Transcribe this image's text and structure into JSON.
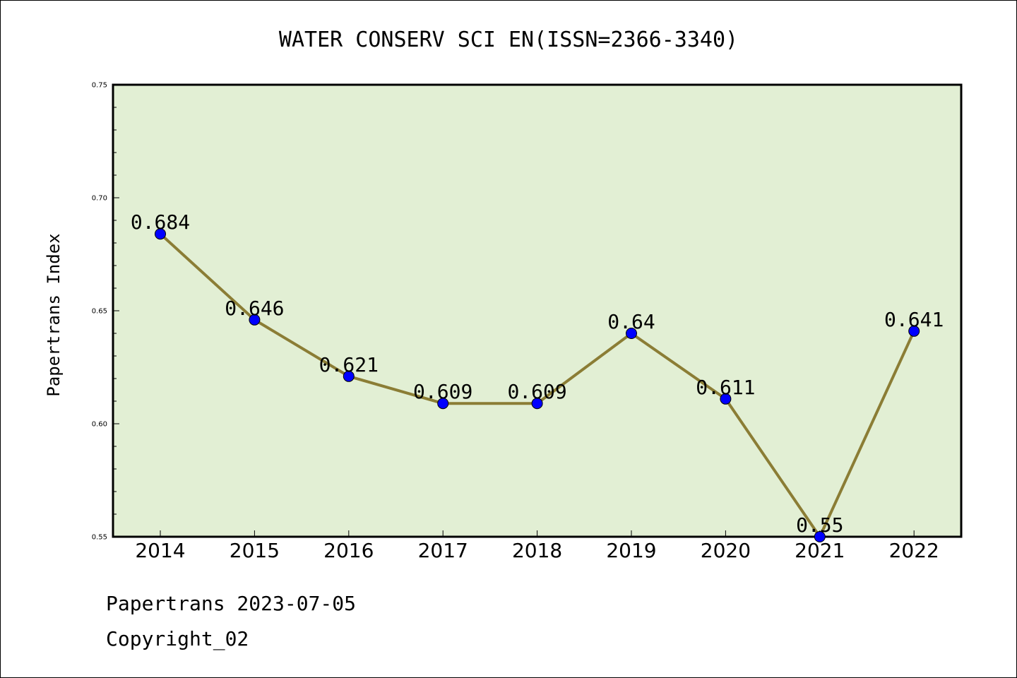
{
  "chart_data": {
    "type": "line",
    "title": "WATER CONSERV SCI EN(ISSN=2366-3340)",
    "ylabel": "Papertrans Index",
    "xlabel": "",
    "categories": [
      "2014",
      "2015",
      "2016",
      "2017",
      "2018",
      "2019",
      "2020",
      "2021",
      "2022"
    ],
    "values": [
      0.684,
      0.646,
      0.621,
      0.609,
      0.609,
      0.64,
      0.611,
      0.55,
      0.641
    ],
    "data_labels": [
      "0.684",
      "0.646",
      "0.621",
      "0.609",
      "0.609",
      "0.64",
      "0.611",
      "0.55",
      "0.641"
    ],
    "ylim": [
      0.55,
      0.75
    ],
    "yticks": [
      "0.55",
      "0.60",
      "0.65",
      "0.70",
      "0.75"
    ],
    "grid": false,
    "colors": {
      "plot_background": "#e2efd4",
      "line": "#8b7d35",
      "marker": "#0000ff"
    }
  },
  "footer": {
    "source": "Papertrans 2023-07-05",
    "copyright": "Copyright_02"
  }
}
